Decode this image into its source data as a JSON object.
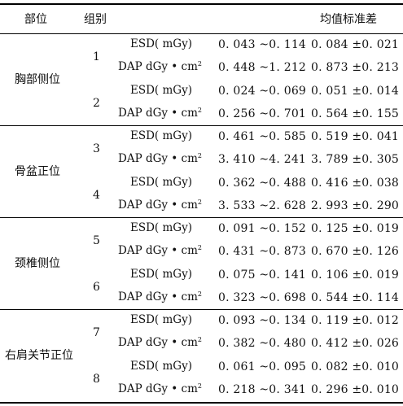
{
  "header": {
    "part": "部位",
    "group": "组别",
    "range": "",
    "meansd": "均值标准差"
  },
  "sections": [
    {
      "part": "胸部侧位",
      "groups": [
        {
          "id": "1",
          "rows": [
            {
              "metric": "ESD( mGy)",
              "range": "0. 043 ~0. 114",
              "meansd": "0. 084 ±0. 021"
            },
            {
              "metric": "DAP dGy • cm",
              "sup": "2",
              "range": "0. 448 ~1. 212",
              "meansd": "0. 873 ±0. 213"
            }
          ]
        },
        {
          "id": "2",
          "rows": [
            {
              "metric": "ESD( mGy)",
              "range": "0. 024 ~0. 069",
              "meansd": "0. 051 ±0. 014"
            },
            {
              "metric": "DAP dGy • cm",
              "sup": "2",
              "range": "0. 256 ~0. 701",
              "meansd": "0. 564 ±0. 155"
            }
          ]
        }
      ]
    },
    {
      "part": "骨盆正位",
      "groups": [
        {
          "id": "3",
          "rows": [
            {
              "metric": "ESD( mGy)",
              "range": "0. 461 ~0. 585",
              "meansd": "0. 519 ±0. 041"
            },
            {
              "metric": "DAP dGy • cm",
              "sup": "2",
              "range": "3. 410 ~4. 241",
              "meansd": "3. 789 ±0. 305"
            }
          ]
        },
        {
          "id": "4",
          "rows": [
            {
              "metric": "ESD( mGy)",
              "range": "0. 362 ~0. 488",
              "meansd": "0. 416 ±0. 038"
            },
            {
              "metric": "DAP dGy • cm",
              "sup": "2",
              "range": "3. 533 ~2. 628",
              "meansd": "2. 993 ±0. 290"
            }
          ]
        }
      ]
    },
    {
      "part": "颈椎侧位",
      "groups": [
        {
          "id": "5",
          "rows": [
            {
              "metric": "ESD( mGy)",
              "range": "0. 091 ~0. 152",
              "meansd": "0. 125 ±0. 019"
            },
            {
              "metric": "DAP dGy • cm",
              "sup": "2",
              "range": "0. 431 ~0. 873",
              "meansd": "0. 670 ±0. 126"
            }
          ]
        },
        {
          "id": "6",
          "rows": [
            {
              "metric": "ESD( mGy)",
              "range": "0. 075 ~0. 141",
              "meansd": "0. 106 ±0. 019"
            },
            {
              "metric": "DAP dGy • cm",
              "sup": "2",
              "range": "0. 323 ~0. 698",
              "meansd": "0. 544 ±0. 114"
            }
          ]
        }
      ]
    },
    {
      "part": "右肩关节正位",
      "groups": [
        {
          "id": "7",
          "rows": [
            {
              "metric": "ESD( mGy)",
              "range": "0. 093 ~0. 134",
              "meansd": "0. 119 ±0. 012"
            },
            {
              "metric": "DAP dGy • cm",
              "sup": "2",
              "range": "0. 382 ~0. 480",
              "meansd": "0. 412 ±0. 026"
            }
          ]
        },
        {
          "id": "8",
          "rows": [
            {
              "metric": "ESD( mGy)",
              "range": "0. 061 ~0. 095",
              "meansd": "0. 082 ±0. 010"
            },
            {
              "metric": "DAP dGy • cm",
              "sup": "2",
              "range": "0. 218 ~0. 341",
              "meansd": "0. 296 ±0. 010"
            }
          ]
        }
      ]
    }
  ]
}
